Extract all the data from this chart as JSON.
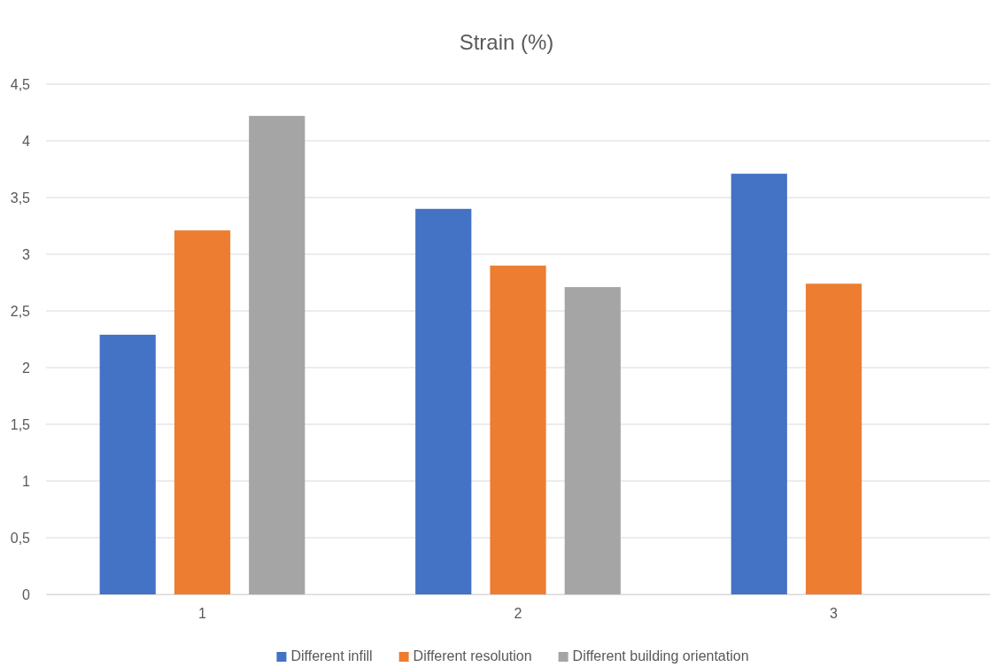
{
  "chart_data": {
    "type": "bar",
    "title": "Strain (%)",
    "categories": [
      "1",
      "2",
      "3"
    ],
    "series": [
      {
        "name": "Different infill",
        "color": "#4472c4",
        "values": [
          2.29,
          3.4,
          3.71
        ]
      },
      {
        "name": "Different resolution",
        "color": "#ed7d31",
        "values": [
          3.21,
          2.9,
          2.74
        ]
      },
      {
        "name": "Different building orientation",
        "color": "#a5a5a5",
        "values": [
          4.22,
          2.71,
          null
        ]
      }
    ],
    "ylim": [
      0,
      4.5
    ],
    "yticks": [
      0,
      {
        "value": 0.5,
        "label": "0,5"
      },
      1,
      {
        "value": 1.5,
        "label": "1,5"
      },
      2,
      {
        "value": 2.5,
        "label": "2,5"
      },
      3,
      {
        "value": 3.5,
        "label": "3,5"
      },
      4,
      {
        "value": 4.5,
        "label": "4,5"
      }
    ],
    "grid": "y",
    "legend": "bottom"
  }
}
